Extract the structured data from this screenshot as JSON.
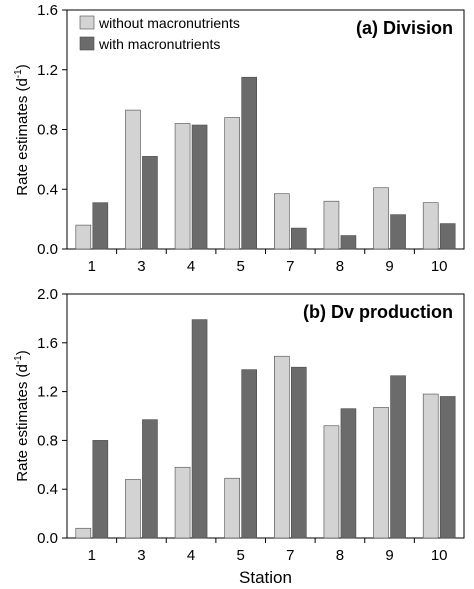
{
  "chart_data": [
    {
      "type": "bar",
      "title": "(a) Division",
      "ylabel": "Rate estimates (d-1)",
      "xlabel": "",
      "categories": [
        "1",
        "3",
        "4",
        "5",
        "7",
        "8",
        "9",
        "10"
      ],
      "ylim": [
        0,
        1.6
      ],
      "yticks": [
        "0.0",
        "0.4",
        "0.8",
        "1.2",
        "1.6"
      ],
      "legend": "top-left",
      "series": [
        {
          "name": "without macronutrients",
          "color": "#d3d3d3",
          "values": [
            0.16,
            0.93,
            0.84,
            0.88,
            0.37,
            0.32,
            0.41,
            0.31
          ]
        },
        {
          "name": "with macronutrients",
          "color": "#6b6b6b",
          "values": [
            0.31,
            0.62,
            0.83,
            1.15,
            0.14,
            0.09,
            0.23,
            0.17
          ]
        }
      ]
    },
    {
      "type": "bar",
      "title": "(b) Dv production",
      "ylabel": "Rate estimates (d-1)",
      "xlabel": "Station",
      "categories": [
        "1",
        "3",
        "4",
        "5",
        "7",
        "8",
        "9",
        "10"
      ],
      "ylim": [
        0,
        2.0
      ],
      "yticks": [
        "0.0",
        "0.4",
        "0.8",
        "1.2",
        "1.6",
        "2.0"
      ],
      "series": [
        {
          "name": "without macronutrients",
          "color": "#d3d3d3",
          "values": [
            0.08,
            0.48,
            0.58,
            0.49,
            1.49,
            0.92,
            1.07,
            1.18
          ]
        },
        {
          "name": "with macronutrients",
          "color": "#6b6b6b",
          "values": [
            0.8,
            0.97,
            1.79,
            1.38,
            1.4,
            1.06,
            1.33,
            1.16
          ]
        }
      ]
    }
  ]
}
